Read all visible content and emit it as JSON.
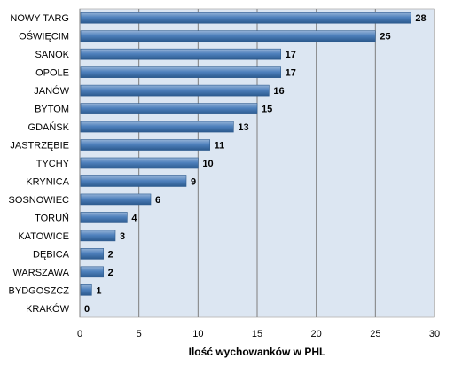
{
  "chart_data": {
    "type": "bar",
    "orientation": "horizontal",
    "categories": [
      "NOWY TARG",
      "OŚWIĘCIM",
      "SANOK",
      "OPOLE",
      "JANÓW",
      "BYTOM",
      "GDAŃSK",
      "JASTRZĘBIE",
      "TYCHY",
      "KRYNICA",
      "SOSNOWIEC",
      "TORUŃ",
      "KATOWICE",
      "DĘBICA",
      "WARSZAWA",
      "BYDGOSZCZ",
      "KRAKÓW"
    ],
    "values": [
      28,
      25,
      17,
      17,
      16,
      15,
      13,
      11,
      10,
      9,
      6,
      4,
      3,
      2,
      2,
      1,
      0
    ],
    "title": "",
    "xlabel": "Ilość wychowanków w PHL",
    "ylabel": "",
    "xlim": [
      0,
      30
    ],
    "xticks": [
      0,
      5,
      10,
      15,
      20,
      25,
      30
    ],
    "grid": true,
    "legend": "none",
    "colors": {
      "plot_background": "#dce6f2",
      "bar": "#4f81bd",
      "bar_light": "#95b3d7",
      "bar_dark": "#2c5a8e",
      "grid": "#7f7f7f"
    }
  }
}
